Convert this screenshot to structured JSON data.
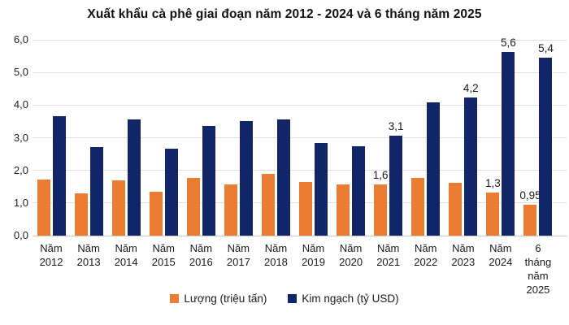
{
  "title": "Xuất khẩu cà phê giai đoạn năm 2012 - 2024 và 6 tháng năm 2025",
  "colors": {
    "volume": "#EB7D33",
    "turnover": "#112668",
    "gridline": "#E0E0E0",
    "baseline": "#C8C8C8"
  },
  "chart_data": {
    "type": "bar",
    "title": "Xuất khẩu cà phê giai đoạn năm 2012 - 2024 và 6 tháng năm 2025",
    "categories": [
      "Năm\n2012",
      "Năm\n2013",
      "Năm\n2014",
      "Năm\n2015",
      "Năm\n2016",
      "Năm\n2017",
      "Năm\n2018",
      "Năm\n2019",
      "Năm\n2020",
      "Năm\n2021",
      "Năm\n2022",
      "Năm\n2023",
      "Năm\n2024",
      "6\ntháng\nnăm\n2025"
    ],
    "series": [
      {
        "name": "Lượng (triệu tấn)",
        "color_key": "volume",
        "values": [
          1.73,
          1.3,
          1.69,
          1.34,
          1.78,
          1.57,
          1.88,
          1.65,
          1.57,
          1.56,
          1.78,
          1.62,
          1.32,
          0.95
        ],
        "labels": [
          null,
          null,
          null,
          null,
          null,
          null,
          null,
          null,
          null,
          "1,6",
          null,
          null,
          "1,3",
          "0,95"
        ]
      },
      {
        "name": "Kim ngạch (tỷ USD)",
        "color_key": "turnover",
        "values": [
          3.67,
          2.72,
          3.56,
          2.67,
          3.36,
          3.52,
          3.55,
          2.85,
          2.74,
          3.06,
          4.08,
          4.24,
          5.62,
          5.45
        ],
        "labels": [
          null,
          null,
          null,
          null,
          null,
          null,
          null,
          null,
          null,
          "3,1",
          null,
          "4,2",
          "5,6",
          "5,4"
        ]
      }
    ],
    "ylim": [
      0,
      6
    ],
    "y_ticks": [
      "0,0",
      "1,0",
      "2,0",
      "3,0",
      "4,0",
      "5,0",
      "6,0"
    ],
    "grid": true,
    "legend_position": "bottom"
  }
}
